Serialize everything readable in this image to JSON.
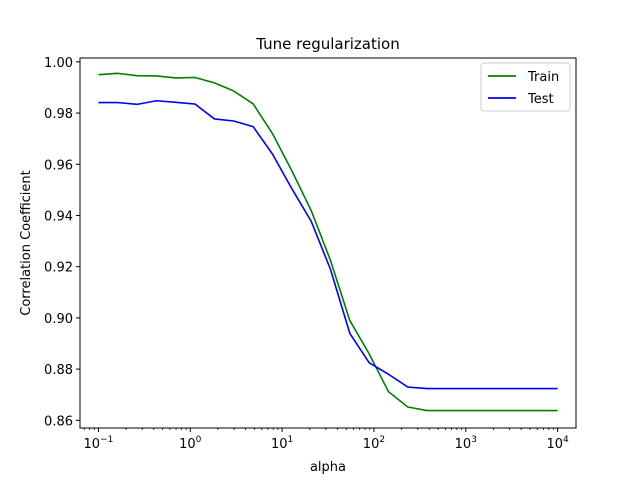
{
  "chart_data": {
    "type": "line",
    "title": "Tune regularization",
    "xlabel": "alpha",
    "ylabel": "Correlation Coefficient",
    "xscale": "log",
    "xlim": [
      0.063,
      15849
    ],
    "ylim": [
      0.857,
      1.0015
    ],
    "xticks": [
      {
        "value": 0.1,
        "base": "10",
        "exp": "−1"
      },
      {
        "value": 1,
        "base": "10",
        "exp": "0"
      },
      {
        "value": 10,
        "base": "10",
        "exp": "1"
      },
      {
        "value": 100,
        "base": "10",
        "exp": "2"
      },
      {
        "value": 1000,
        "base": "10",
        "exp": "3"
      },
      {
        "value": 10000,
        "base": "10",
        "exp": "4"
      }
    ],
    "yticks": [
      {
        "value": 0.86,
        "label": "0.86"
      },
      {
        "value": 0.88,
        "label": "0.88"
      },
      {
        "value": 0.9,
        "label": "0.90"
      },
      {
        "value": 0.92,
        "label": "0.92"
      },
      {
        "value": 0.94,
        "label": "0.94"
      },
      {
        "value": 0.96,
        "label": "0.96"
      },
      {
        "value": 0.98,
        "label": "0.98"
      },
      {
        "value": 1.0,
        "label": "1.00"
      }
    ],
    "x": [
      0.1,
      0.1624,
      0.2637,
      0.4281,
      0.6952,
      1.1288,
      1.833,
      2.976,
      4.833,
      7.848,
      12.74,
      20.69,
      33.6,
      54.56,
      88.59,
      143.8,
      233.6,
      379.3,
      615.8,
      1000,
      1624,
      2637,
      4281,
      6952,
      10000
    ],
    "series": [
      {
        "name": "Train",
        "color": "#008000",
        "values": [
          0.995,
          0.9955,
          0.9946,
          0.9945,
          0.9937,
          0.9939,
          0.9918,
          0.9886,
          0.9836,
          0.972,
          0.9575,
          0.942,
          0.9225,
          0.899,
          0.886,
          0.8712,
          0.8652,
          0.8638,
          0.8638,
          0.8638,
          0.8638,
          0.8638,
          0.8638,
          0.8638,
          0.8638
        ]
      },
      {
        "name": "Test",
        "color": "#0000ff",
        "values": [
          0.9841,
          0.9841,
          0.9834,
          0.9848,
          0.9842,
          0.9835,
          0.9777,
          0.9769,
          0.9747,
          0.964,
          0.9505,
          0.9378,
          0.919,
          0.894,
          0.8825,
          0.878,
          0.873,
          0.8724,
          0.8724,
          0.8724,
          0.8724,
          0.8724,
          0.8724,
          0.8724,
          0.8724
        ]
      }
    ],
    "legend": "top-right",
    "grid": false
  }
}
